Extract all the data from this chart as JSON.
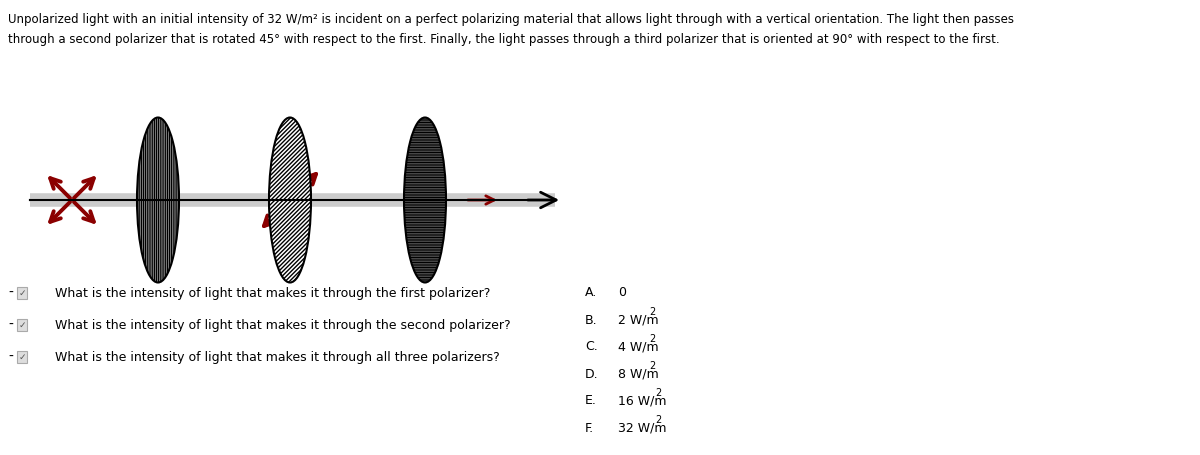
{
  "title_line1": "Unpolarized light with an initial intensity of 32 W/m",
  "title_line1_sup": "2",
  "title_line1_rest": " is incident on a perfect polarizing material that allows light through with a vertical orientation. The light then passes",
  "title_line2": "through a second polarizer that is rotated 45",
  "title_line2_sup": "0",
  "title_line2_rest": " with respect to the first. Finally, the light passes through a third polarizer that is oriented at 90",
  "title_line2_sup2": "0",
  "title_line2_rest2": " with respect to the first.",
  "questions": [
    "What is the intensity of light that makes it through the first polarizer?",
    "What is the intensity of light that makes it through the second polarizer?",
    "What is the intensity of light that makes it through all three polarizers?"
  ],
  "answer_letters": [
    "A.",
    "B.",
    "C.",
    "D.",
    "E.",
    "F."
  ],
  "answer_values": [
    "0",
    "2 W/m",
    "4 W/m",
    "8 W/m",
    "16 W/m",
    "32 W/m"
  ],
  "answer_has_sup": [
    false,
    true,
    true,
    true,
    true,
    true
  ],
  "bg_color": "#ffffff",
  "text_color": "#000000",
  "arrow_color": "#8b0000",
  "beam_color": "#000000",
  "title_fontsize": 8.5,
  "question_fontsize": 9,
  "answer_fontsize": 9
}
